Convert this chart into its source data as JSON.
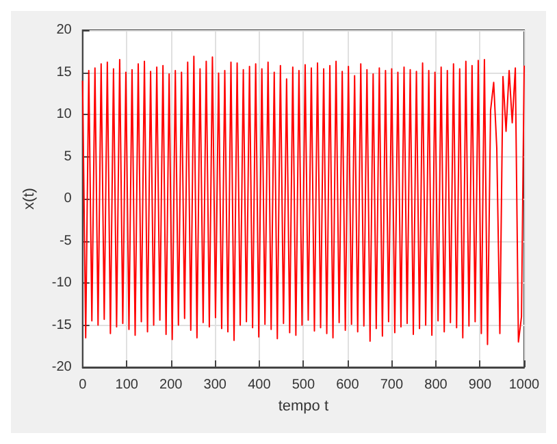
{
  "chart_data": {
    "type": "line",
    "xlabel": "tempo t",
    "ylabel": "x(t)",
    "xlim": [
      0,
      1000
    ],
    "xticks": [
      0,
      100,
      200,
      300,
      400,
      500,
      600,
      700,
      800,
      900,
      1000
    ],
    "ylim": [
      -20,
      20
    ],
    "yticks": [
      -20,
      -15,
      -10,
      -5,
      0,
      5,
      10,
      15,
      20
    ],
    "grid": true,
    "marker": "none",
    "line_style": "solid",
    "series": [
      {
        "color": "#ff0000",
        "x": [
          0,
          7,
          14,
          21,
          28,
          35,
          42,
          49,
          56,
          63,
          70,
          77,
          84,
          91,
          98,
          105,
          112,
          119,
          126,
          133,
          140,
          147,
          154,
          161,
          168,
          175,
          182,
          189,
          196,
          203,
          210,
          217,
          224,
          231,
          238,
          245,
          252,
          259,
          266,
          273,
          280,
          287,
          294,
          301,
          308,
          315,
          322,
          329,
          336,
          343,
          350,
          357,
          364,
          371,
          378,
          385,
          392,
          399,
          406,
          413,
          420,
          427,
          434,
          441,
          448,
          455,
          462,
          469,
          476,
          483,
          490,
          497,
          504,
          511,
          518,
          525,
          532,
          539,
          546,
          553,
          560,
          567,
          574,
          581,
          588,
          595,
          602,
          609,
          616,
          623,
          630,
          637,
          644,
          651,
          658,
          665,
          672,
          679,
          686,
          693,
          700,
          707,
          714,
          721,
          728,
          735,
          742,
          749,
          756,
          763,
          770,
          777,
          784,
          791,
          798,
          805,
          812,
          819,
          826,
          833,
          840,
          847,
          854,
          861,
          868,
          875,
          882,
          889,
          896,
          903,
          910,
          917,
          924,
          931,
          938,
          945,
          952,
          959,
          966,
          973,
          980,
          987,
          994,
          1000
        ],
        "values": [
          14,
          -16.5,
          15.2,
          -14.5,
          15.5,
          -15,
          16,
          -14.3,
          16.2,
          -16,
          15.4,
          -15.2,
          16.5,
          -14.8,
          15,
          -15.5,
          15.3,
          -16.2,
          16,
          -14.6,
          16.3,
          -15.8,
          15.1,
          -15,
          15.6,
          -14.4,
          15.8,
          -16.1,
          14.8,
          -16.7,
          15.2,
          -15,
          15,
          -14.2,
          16.2,
          -15.6,
          16.9,
          -16.5,
          15.4,
          -14.7,
          16.3,
          -15.2,
          16.8,
          -14.1,
          14.9,
          -15.4,
          15.2,
          -15.8,
          16.2,
          -16.8,
          16.1,
          -15,
          15.3,
          -14.6,
          15.7,
          -15.3,
          16,
          -16.4,
          15.4,
          -14.9,
          16.2,
          -15.5,
          15,
          -16.6,
          15.8,
          -14.8,
          14.2,
          -15.9,
          15.6,
          -16.2,
          15.2,
          -15,
          15.9,
          -14.4,
          15.5,
          -15.7,
          16.1,
          -15.3,
          15.4,
          -16,
          15.8,
          -16.5,
          16.3,
          -14.7,
          15.1,
          -15.6,
          15.7,
          -14.9,
          14.6,
          -15.8,
          16,
          -15.1,
          15.3,
          -16.9,
          14.8,
          -15.4,
          15.5,
          -16.3,
          15.2,
          -14.6,
          15.4,
          -15.9,
          15,
          -15.2,
          15.6,
          -14.8,
          15.3,
          -16.1,
          15.1,
          -15.4,
          16.1,
          -15,
          15.2,
          -16.2,
          15,
          -14.5,
          15.6,
          -15.8,
          15.2,
          -14.7,
          16,
          -15.3,
          15.4,
          -16.5,
          16.3,
          -15.1,
          15.8,
          -14.6,
          16.4,
          -16,
          16.5,
          -17.3,
          10.5,
          13.8,
          6,
          -16,
          14.5,
          8,
          15.2,
          9,
          15.5,
          -17,
          -14,
          15.8
        ]
      }
    ]
  }
}
